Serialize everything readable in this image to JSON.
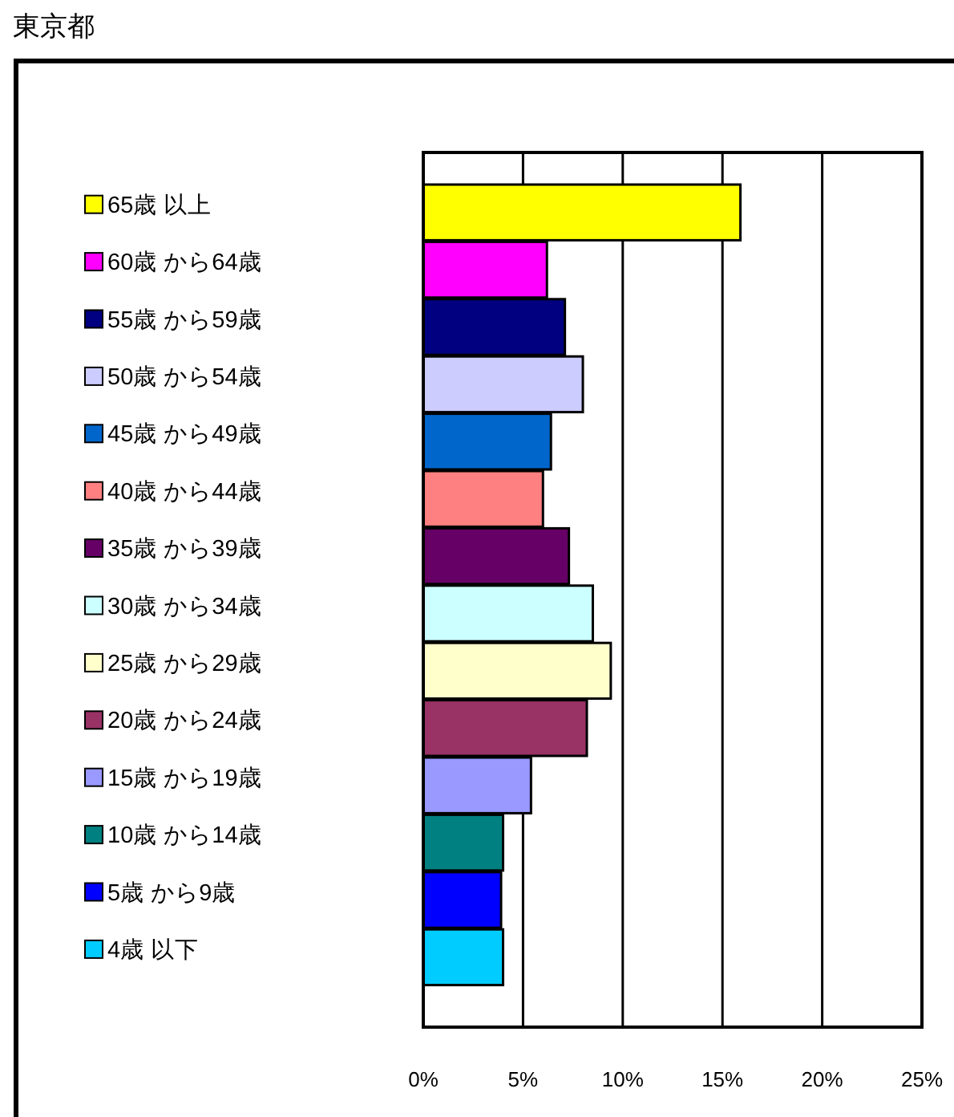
{
  "chart_data": {
    "type": "bar",
    "orientation": "horizontal",
    "title": "東京都",
    "categories": [
      "65歳 以上",
      "60歳 から64歳",
      "55歳 から59歳",
      "50歳 から54歳",
      "45歳 から49歳",
      "40歳 から44歳",
      "35歳 から39歳",
      "30歳 から34歳",
      "25歳 から29歳",
      "20歳 から24歳",
      "15歳 から19歳",
      "10歳 から14歳",
      "5歳 から9歳",
      "4歳 以下"
    ],
    "values": [
      15.9,
      6.2,
      7.1,
      8.0,
      6.4,
      6.0,
      7.3,
      8.5,
      9.4,
      8.2,
      5.4,
      4.0,
      3.9,
      4.0
    ],
    "colors": [
      "#ffff00",
      "#ff00ff",
      "#000080",
      "#ccccff",
      "#0066cc",
      "#ff8080",
      "#660066",
      "#ccffff",
      "#ffffcc",
      "#993366",
      "#9999ff",
      "#008080",
      "#0000ff",
      "#00ccff"
    ],
    "xlim": [
      0,
      25
    ],
    "xticks": [
      {
        "value": 0,
        "label": "0%"
      },
      {
        "value": 5,
        "label": "5%"
      },
      {
        "value": 10,
        "label": "10%"
      },
      {
        "value": 15,
        "label": "15%"
      },
      {
        "value": 20,
        "label": "20%"
      },
      {
        "value": 25,
        "label": "25%"
      }
    ],
    "grid": "x"
  }
}
